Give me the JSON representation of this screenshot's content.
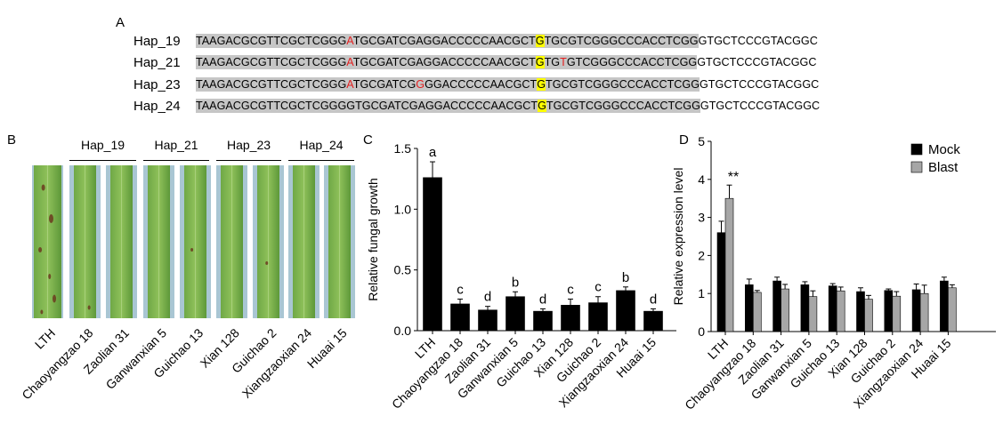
{
  "panels": {
    "A": "A",
    "B": "B",
    "C": "C",
    "D": "D"
  },
  "panel_a": {
    "rows": [
      {
        "name": "Hap_19",
        "grey_segments": [
          {
            "t": "TAAGACGCGTTCGCTCGGG",
            "c": "n"
          },
          {
            "t": "A",
            "c": "r"
          },
          {
            "t": "TGCGATCGAGGACCCCCAACGCT",
            "c": "n"
          },
          {
            "t": "G",
            "c": "y"
          },
          {
            "t": "TGCGTCGGGCCCACCTCGG",
            "c": "n"
          }
        ],
        "tail": "GTGCTCCCGTACGGC"
      },
      {
        "name": "Hap_21",
        "grey_segments": [
          {
            "t": "TAAGACGCGTTCGCTCGGG",
            "c": "n"
          },
          {
            "t": "A",
            "c": "r"
          },
          {
            "t": "TGCGATCGAGGACCCCCAACGCT",
            "c": "n"
          },
          {
            "t": "G",
            "c": "y"
          },
          {
            "t": "TG",
            "c": "n"
          },
          {
            "t": "T",
            "c": "r"
          },
          {
            "t": "GTCGGGCCCACCTCGG",
            "c": "n"
          }
        ],
        "tail": "GTGCTCCCGTACGGC"
      },
      {
        "name": "Hap_23",
        "grey_segments": [
          {
            "t": "TAAGACGCGTTCGCTCGGG",
            "c": "n"
          },
          {
            "t": "A",
            "c": "r"
          },
          {
            "t": "TGCGATCG",
            "c": "n"
          },
          {
            "t": "G",
            "c": "r"
          },
          {
            "t": "GGACCCCCAACGCT",
            "c": "n"
          },
          {
            "t": "G",
            "c": "y"
          },
          {
            "t": "TGCGTCGGGCCCACCTCGG",
            "c": "n"
          }
        ],
        "tail": "GTGCTCCCGTACGGC"
      },
      {
        "name": "Hap_24",
        "grey_segments": [
          {
            "t": "TAAGACGCGTTCGCTCGGGGTGCGATCGAGGACCCCCAACGCT",
            "c": "n"
          },
          {
            "t": "G",
            "c": "y"
          },
          {
            "t": "TGCGTCGGGCCCACCTCGG",
            "c": "n"
          }
        ],
        "tail": "GTGCTCCCGTACGGC"
      }
    ]
  },
  "panel_b": {
    "groups": [
      "Hap_19",
      "Hap_21",
      "Hap_23",
      "Hap_24"
    ],
    "leaves": [
      "LTH",
      "Chaoyangzao 18",
      "Zaolian 31",
      "Ganwanxian 5",
      "Guichao 13",
      "Xian 128",
      "Guichao 2",
      "Xiangzaoxian 24",
      "Huaai 15"
    ]
  },
  "chart_data": [
    {
      "type": "bar",
      "panel": "C",
      "ylabel": "Relative fungal growth",
      "ylim": [
        0,
        1.5
      ],
      "yticks": [
        "0.0",
        "0.5",
        "1.0",
        "1.5"
      ],
      "categories": [
        "LTH",
        "Chaoyangzao 18",
        "Zaolian 31",
        "Ganwanxian 5",
        "Guichao 13",
        "Xian 128",
        "Guichao 2",
        "Xiangzaoxian 24",
        "Huaai 15"
      ],
      "values": [
        1.26,
        0.22,
        0.17,
        0.28,
        0.16,
        0.21,
        0.23,
        0.33,
        0.16
      ],
      "errors": [
        0.13,
        0.04,
        0.03,
        0.04,
        0.02,
        0.05,
        0.05,
        0.03,
        0.02
      ],
      "letters": [
        "a",
        "c",
        "d",
        "b",
        "d",
        "c",
        "c",
        "b",
        "d"
      ],
      "color": "#000000"
    },
    {
      "type": "bar",
      "panel": "D",
      "ylabel": "Relative expression level",
      "ylim": [
        0,
        5
      ],
      "yticks": [
        "0",
        "1",
        "2",
        "3",
        "4",
        "5"
      ],
      "categories": [
        "LTH",
        "Chaoyangzao 18",
        "Zaolian 31",
        "Ganwanxian 5",
        "Guichao 13",
        "Xian 128",
        "Guichao 2",
        "Xiangzaoxian 24",
        "Huaai 15"
      ],
      "series": [
        {
          "name": "Mock",
          "color": "#000000",
          "values": [
            2.6,
            1.23,
            1.33,
            1.23,
            1.2,
            1.05,
            1.08,
            1.1,
            1.33
          ],
          "errors": [
            0.3,
            0.15,
            0.1,
            0.08,
            0.06,
            0.1,
            0.04,
            0.15,
            0.1
          ]
        },
        {
          "name": "Blast",
          "color": "#a6a6a6",
          "values": [
            3.5,
            1.03,
            1.12,
            0.92,
            1.07,
            0.85,
            0.93,
            1.0,
            1.15
          ],
          "errors": [
            0.35,
            0.05,
            0.12,
            0.15,
            0.1,
            0.1,
            0.12,
            0.22,
            0.08
          ]
        }
      ],
      "annotation": "**",
      "legend_position": "top-right"
    }
  ]
}
